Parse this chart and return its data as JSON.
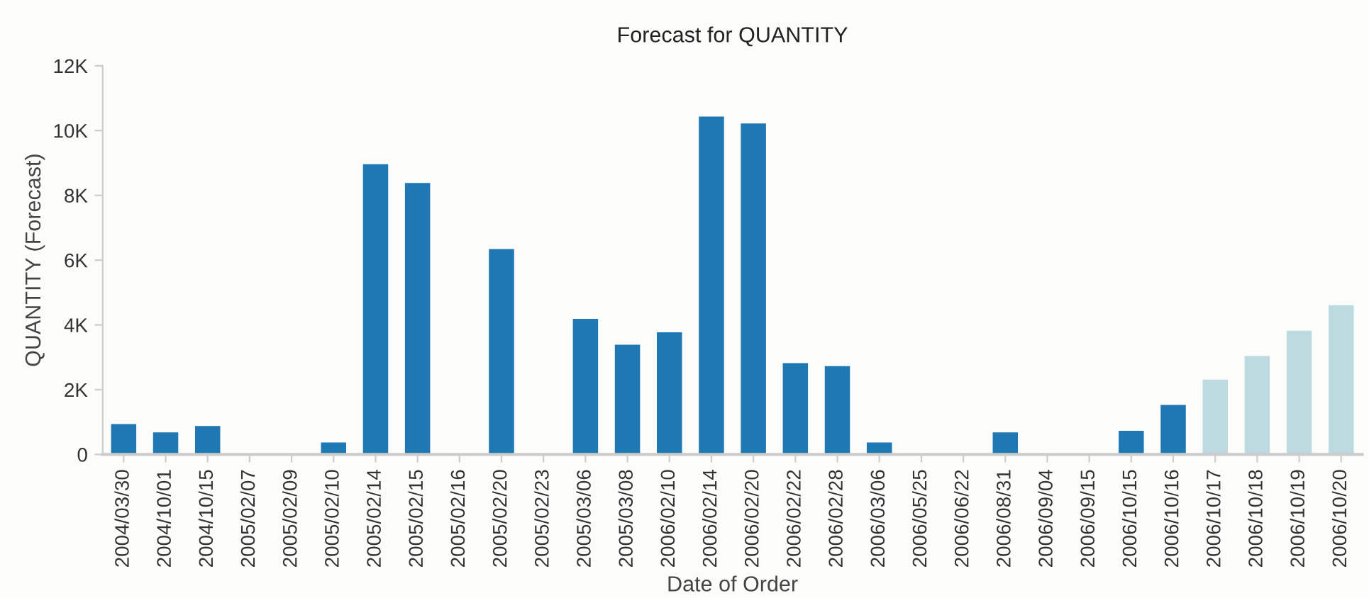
{
  "chart_data": {
    "type": "bar",
    "title": "Forecast for QUANTITY",
    "xlabel": "Date of Order",
    "ylabel": "QUANTITY (Forecast)",
    "categories": [
      "2004/03/30",
      "2004/10/01",
      "2004/10/15",
      "2005/02/07",
      "2005/02/09",
      "2005/02/10",
      "2005/02/14",
      "2005/02/15",
      "2005/02/16",
      "2005/02/20",
      "2005/02/23",
      "2005/03/06",
      "2005/03/08",
      "2006/02/10",
      "2006/02/14",
      "2006/02/20",
      "2006/02/22",
      "2006/02/28",
      "2006/03/06",
      "2006/05/25",
      "2006/06/22",
      "2006/08/31",
      "2006/09/04",
      "2006/09/15",
      "2006/10/15",
      "2006/10/16",
      "2006/10/17",
      "2006/10/18",
      "2006/10/19",
      "2006/10/20"
    ],
    "values": [
      940,
      680,
      880,
      0,
      0,
      370,
      8960,
      8380,
      0,
      6340,
      0,
      4190,
      3390,
      3770,
      10430,
      10220,
      2820,
      2730,
      370,
      0,
      0,
      680,
      0,
      0,
      730,
      1530,
      2310,
      3040,
      3820,
      4610
    ],
    "colors": [
      "#1f77b4",
      "#1f77b4",
      "#1f77b4",
      "#1f77b4",
      "#1f77b4",
      "#1f77b4",
      "#1f77b4",
      "#1f77b4",
      "#1f77b4",
      "#1f77b4",
      "#1f77b4",
      "#1f77b4",
      "#1f77b4",
      "#1f77b4",
      "#1f77b4",
      "#1f77b4",
      "#1f77b4",
      "#1f77b4",
      "#1f77b4",
      "#1f77b4",
      "#1f77b4",
      "#1f77b4",
      "#1f77b4",
      "#1f77b4",
      "#1f77b4",
      "#1f77b4",
      "#bcdadf",
      "#bcdadf",
      "#bcdadf",
      "#bcdadf"
    ],
    "ylim": [
      0,
      12000
    ],
    "yticks": [
      0,
      {
        "value": 2000,
        "label": "2K"
      },
      {
        "value": 4000,
        "label": "4K"
      },
      {
        "value": 6000,
        "label": "6K"
      },
      {
        "value": 8000,
        "label": "8K"
      },
      {
        "value": 10000,
        "label": "10K"
      },
      {
        "value": 12000,
        "label": "12K"
      }
    ],
    "grid": false
  }
}
